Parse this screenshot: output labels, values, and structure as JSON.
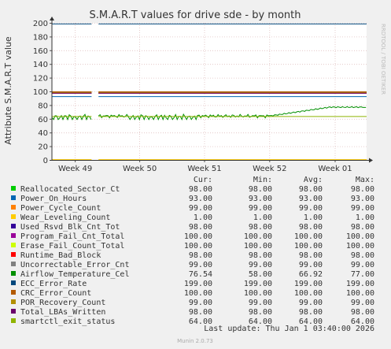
{
  "chart_data": {
    "type": "line",
    "title": "S.M.A.R.T values for drive sde - by month",
    "ylabel": "Attribute S.M.A.R.T value",
    "watermark": "RRDTOOL / TOBI OETIKER",
    "ylim": [
      0,
      200
    ],
    "y_ticks": [
      "0",
      "20",
      "40",
      "60",
      "80",
      "100",
      "120",
      "140",
      "160",
      "180",
      "200"
    ],
    "x_ticks": [
      "Week 49",
      "Week 50",
      "Week 51",
      "Week 52",
      "Week 01"
    ],
    "grid": true,
    "legend_columns": [
      "Cur:",
      "Min:",
      "Avg:",
      "Max:"
    ],
    "series": [
      {
        "name": "Reallocated_Sector_Ct",
        "color": "#00cc00",
        "cur": "98.00",
        "min": "98.00",
        "avg": "98.00",
        "max": "98.00"
      },
      {
        "name": "Power_On_Hours",
        "color": "#0066b3",
        "cur": "93.00",
        "min": "93.00",
        "avg": "93.00",
        "max": "93.00"
      },
      {
        "name": "Power_Cycle_Count",
        "color": "#ff8000",
        "cur": "99.00",
        "min": "99.00",
        "avg": "99.00",
        "max": "99.00"
      },
      {
        "name": "Wear_Leveling_Count",
        "color": "#ffcc00",
        "cur": "1.00",
        "min": "1.00",
        "avg": "1.00",
        "max": "1.00"
      },
      {
        "name": "Used_Rsvd_Blk_Cnt_Tot",
        "color": "#330099",
        "cur": "98.00",
        "min": "98.00",
        "avg": "98.00",
        "max": "98.00"
      },
      {
        "name": "Program_Fail_Cnt_Total",
        "color": "#990099",
        "cur": "100.00",
        "min": "100.00",
        "avg": "100.00",
        "max": "100.00"
      },
      {
        "name": "Erase_Fail_Count_Total",
        "color": "#ccff00",
        "cur": "100.00",
        "min": "100.00",
        "avg": "100.00",
        "max": "100.00"
      },
      {
        "name": "Runtime_Bad_Block",
        "color": "#ff0000",
        "cur": "98.00",
        "min": "98.00",
        "avg": "98.00",
        "max": "98.00"
      },
      {
        "name": "Uncorrectable_Error_Cnt",
        "color": "#808080",
        "cur": "99.00",
        "min": "99.00",
        "avg": "99.00",
        "max": "99.00"
      },
      {
        "name": "Airflow_Temperature_Cel",
        "color": "#008f00",
        "cur": "76.54",
        "min": "58.00",
        "avg": "66.92",
        "max": "77.00"
      },
      {
        "name": "ECC_Error_Rate",
        "color": "#00487d",
        "cur": "199.00",
        "min": "199.00",
        "avg": "199.00",
        "max": "199.00"
      },
      {
        "name": "CRC_Error_Count",
        "color": "#b35a00",
        "cur": "100.00",
        "min": "100.00",
        "avg": "100.00",
        "max": "100.00"
      },
      {
        "name": "POR_Recovery_Count",
        "color": "#b38f00",
        "cur": "99.00",
        "min": "99.00",
        "avg": "99.00",
        "max": "99.00"
      },
      {
        "name": "Total_LBAs_Written",
        "color": "#6b006b",
        "cur": "98.00",
        "min": "98.00",
        "avg": "98.00",
        "max": "98.00"
      },
      {
        "name": "smartctl_exit_status",
        "color": "#8fb300",
        "cur": "64.00",
        "min": "64.00",
        "avg": "64.00",
        "max": "64.00"
      }
    ],
    "last_update": "Last update: Thu Jan  1 03:40:00 2026",
    "footer": "Munin 2.0.73"
  }
}
